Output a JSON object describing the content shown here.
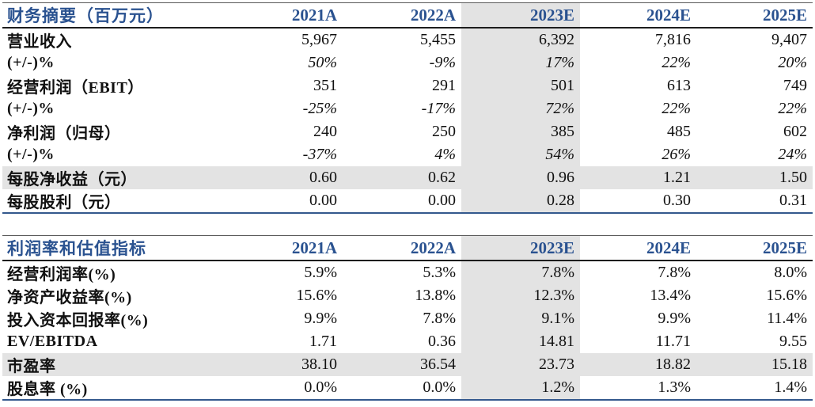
{
  "colors": {
    "header_blue": "#2A5290",
    "shade_gray": "#E3E3E3",
    "dark_border": "#1d1d1d",
    "top_border": "#5a5a5a",
    "blue_border": "#33588D"
  },
  "tables": [
    {
      "title": "财务摘要（百万元）",
      "columns": [
        "2021A",
        "2022A",
        "2023E",
        "2024E",
        "2025E"
      ],
      "highlighted_column": "2023E",
      "rows": [
        {
          "label": "营业收入",
          "values": [
            "5,967",
            "5,455",
            "6,392",
            "7,816",
            "9,407"
          ],
          "italic": false,
          "shaded": false
        },
        {
          "label": "(+/-)%",
          "values": [
            "50%",
            "-9%",
            "17%",
            "22%",
            "20%"
          ],
          "italic": true,
          "shaded": false
        },
        {
          "label": "经营利润（EBIT）",
          "values": [
            "351",
            "291",
            "501",
            "613",
            "749"
          ],
          "italic": false,
          "shaded": false
        },
        {
          "label": "(+/-)%",
          "values": [
            "-25%",
            "-17%",
            "72%",
            "22%",
            "22%"
          ],
          "italic": true,
          "shaded": false
        },
        {
          "label": "净利润（归母）",
          "values": [
            "240",
            "250",
            "385",
            "485",
            "602"
          ],
          "italic": false,
          "shaded": false
        },
        {
          "label": "(+/-)%",
          "values": [
            "-37%",
            "4%",
            "54%",
            "26%",
            "24%"
          ],
          "italic": true,
          "shaded": false
        },
        {
          "label": "每股净收益（元）",
          "values": [
            "0.60",
            "0.62",
            "0.96",
            "1.21",
            "1.50"
          ],
          "italic": false,
          "shaded": true
        },
        {
          "label": "每股股利（元）",
          "values": [
            "0.00",
            "0.00",
            "0.28",
            "0.30",
            "0.31"
          ],
          "italic": false,
          "shaded": false
        }
      ]
    },
    {
      "title": "利润率和估值指标",
      "columns": [
        "2021A",
        "2022A",
        "2023E",
        "2024E",
        "2025E"
      ],
      "highlighted_column": "2023E",
      "rows": [
        {
          "label": "经营利润率(%)",
          "values": [
            "5.9%",
            "5.3%",
            "7.8%",
            "7.8%",
            "8.0%"
          ],
          "italic": false,
          "shaded": false
        },
        {
          "label": "净资产收益率(%)",
          "values": [
            "15.6%",
            "13.8%",
            "12.3%",
            "13.4%",
            "15.6%"
          ],
          "italic": false,
          "shaded": false
        },
        {
          "label": "投入资本回报率(%)",
          "values": [
            "9.9%",
            "7.8%",
            "9.1%",
            "9.9%",
            "11.4%"
          ],
          "italic": false,
          "shaded": false
        },
        {
          "label": "EV/EBITDA",
          "values": [
            "1.71",
            "0.36",
            "14.81",
            "11.71",
            "9.55"
          ],
          "italic": false,
          "shaded": false
        },
        {
          "label": "市盈率",
          "values": [
            "38.10",
            "36.54",
            "23.73",
            "18.82",
            "15.18"
          ],
          "italic": false,
          "shaded": true
        },
        {
          "label": "股息率 (%)",
          "values": [
            "0.0%",
            "0.0%",
            "1.2%",
            "1.3%",
            "1.4%"
          ],
          "italic": false,
          "shaded": false
        }
      ]
    }
  ]
}
